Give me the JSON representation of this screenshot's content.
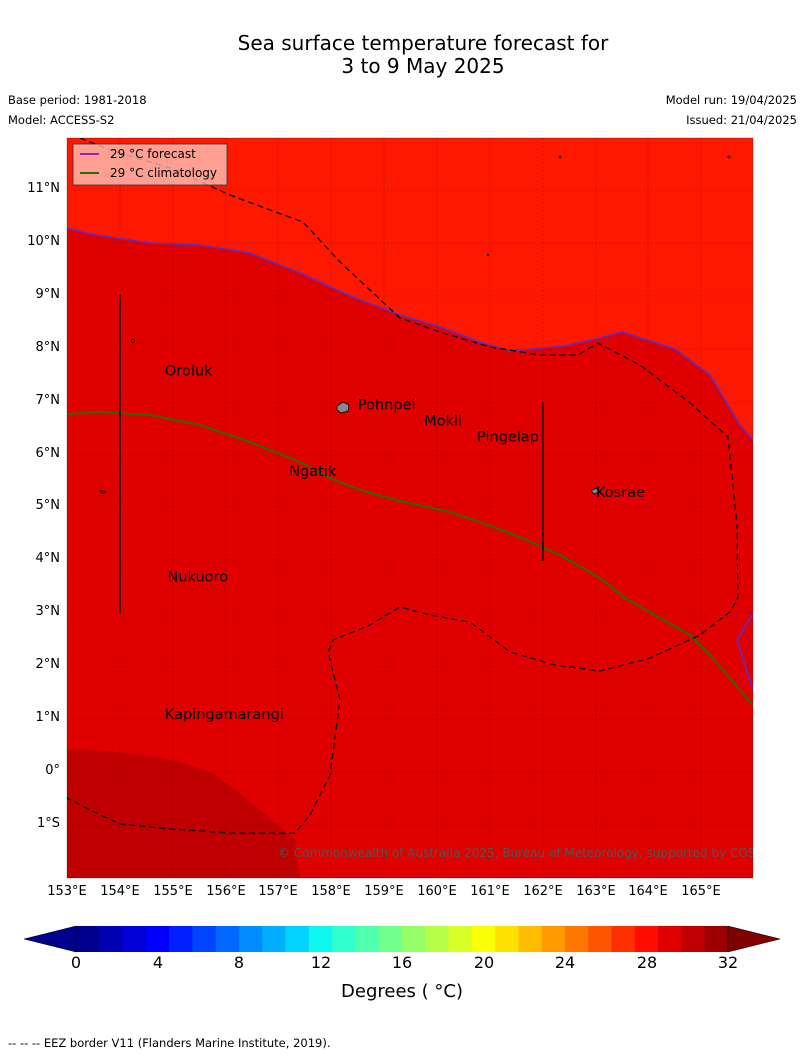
{
  "title_line1": "Sea surface temperature forecast for",
  "title_line2": "3 to 9 May 2025",
  "meta": {
    "base_period": "Base period: 1981-2018",
    "model": "Model: ACCESS-S2",
    "model_run": "Model run: 19/04/2025",
    "issued": "Issued: 21/04/2025"
  },
  "legend": {
    "forecast": "29 °C  forecast",
    "climatology": "29 °C  climatology"
  },
  "lat_ticks": [
    "11°N",
    "10°N",
    "9°N",
    "8°N",
    "7°N",
    "6°N",
    "5°N",
    "4°N",
    "3°N",
    "2°N",
    "1°N",
    "0°",
    "1°S"
  ],
  "lon_ticks": [
    "153°E",
    "154°E",
    "155°E",
    "156°E",
    "157°E",
    "158°E",
    "159°E",
    "160°E",
    "161°E",
    "162°E",
    "163°E",
    "164°E",
    "165°E"
  ],
  "places": [
    {
      "name": "Oroluk",
      "lon": 154.85,
      "lat": 7.5
    },
    {
      "name": "Pohnpei",
      "lon": 158.5,
      "lat": 6.85
    },
    {
      "name": "Mokil",
      "lon": 159.75,
      "lat": 6.55
    },
    {
      "name": "Pingelap",
      "lon": 160.75,
      "lat": 6.25
    },
    {
      "name": "Ngatik",
      "lon": 157.2,
      "lat": 5.6
    },
    {
      "name": "Kosrae",
      "lon": 163.0,
      "lat": 5.2
    },
    {
      "name": "Nukuoro",
      "lon": 154.9,
      "lat": 3.6
    },
    {
      "name": "Kapingamarangi",
      "lon": 154.85,
      "lat": 1.0
    }
  ],
  "copyright": "© Commonwealth of Australia 2025, Bureau of Meteorology, supported by COSPPac",
  "colorbar": {
    "ticks": [
      "0",
      "4",
      "8",
      "12",
      "16",
      "20",
      "24",
      "28",
      "32"
    ],
    "label": "Degrees ( °C)",
    "colors": [
      "#00008f",
      "#0000b3",
      "#0000d7",
      "#0000fb",
      "#0020ff",
      "#0044ff",
      "#0068ff",
      "#008cff",
      "#00b0ff",
      "#00d4ff",
      "#0ff8f0",
      "#30ffce",
      "#51ffac",
      "#73ff8b",
      "#94ff69",
      "#b6ff48",
      "#d8ff26",
      "#f9ff05",
      "#ffe000",
      "#ffbd00",
      "#ff9a00",
      "#ff7700",
      "#ff5400",
      "#ff3000",
      "#ff0d00",
      "#e00000",
      "#c00000",
      "#9c0000"
    ],
    "under_color": "#00008f",
    "over_color": "#800000"
  },
  "map_colors": {
    "above_30": "#ff1800",
    "band_29_30": "#e00000",
    "band_30_31": "#c00000",
    "forecast_line": "#5a2ec8",
    "climatology_line": "#2a6a00"
  },
  "footnote": "--  --  -- EEZ border V11 (Flanders Marine Institute, 2019)."
}
